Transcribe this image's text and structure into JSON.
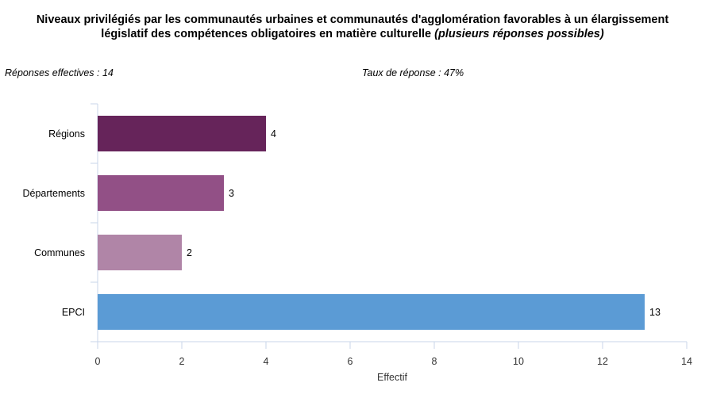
{
  "chart_data": {
    "type": "bar",
    "orientation": "horizontal",
    "title": "Niveaux privilégiés par les communautés urbaines et communautés d'agglomération favorables à un élargissement législatif des compétences obligatoires en matière culturelle",
    "title_line1": "Niveaux privilégiés par les communautés urbaines et communautés d'agglomération favorables à un élargissement",
    "title_line2": "législatif des compétences obligatoires en matière culturelle",
    "subtitle": "(plusieurs réponses possibles)",
    "categories": [
      "Régions",
      "Départements",
      "Communes",
      "EPCI"
    ],
    "values": [
      4,
      3,
      2,
      13
    ],
    "colors": [
      "#66245a",
      "#925086",
      "#b085a7",
      "#5b9bd5"
    ],
    "xlabel": "Effectif",
    "ylabel": "",
    "xlim": [
      0,
      14
    ],
    "xticks": [
      0,
      2,
      4,
      6,
      8,
      10,
      12,
      14
    ],
    "grid": false,
    "legend": "none"
  },
  "meta": {
    "responses_text": "Réponses effectives : 14",
    "rate_text": "Taux de réponse : 47%"
  }
}
